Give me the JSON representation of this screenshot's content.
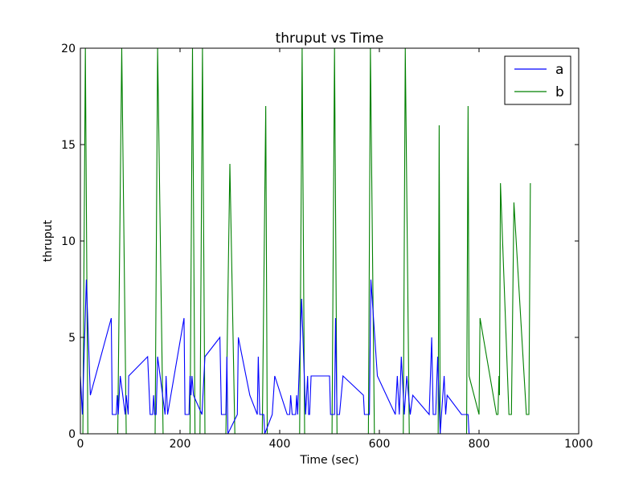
{
  "chart_data": {
    "type": "line",
    "title": "thruput vs Time",
    "xlabel": "Time (sec)",
    "ylabel": "thruput",
    "xlim": [
      0,
      1000
    ],
    "ylim": [
      0,
      20
    ],
    "xticks": [
      0,
      200,
      400,
      600,
      800,
      1000
    ],
    "yticks": [
      0,
      5,
      10,
      15,
      20
    ],
    "grid": false,
    "legend_position": "top-right",
    "series": [
      {
        "name": "a",
        "color": "#0000ff",
        "points": [
          [
            0,
            3
          ],
          [
            4,
            1
          ],
          [
            12,
            8
          ],
          [
            20,
            2
          ],
          [
            62,
            6
          ],
          [
            64,
            1
          ],
          [
            72,
            1
          ],
          [
            74,
            2
          ],
          [
            76,
            1
          ],
          [
            80,
            3
          ],
          [
            90,
            1
          ],
          [
            92,
            2
          ],
          [
            96,
            1
          ],
          [
            97,
            3
          ],
          [
            135,
            4
          ],
          [
            140,
            1
          ],
          [
            145,
            1
          ],
          [
            147,
            2
          ],
          [
            149,
            1
          ],
          [
            152,
            1
          ],
          [
            155,
            4
          ],
          [
            170,
            1
          ],
          [
            172,
            3
          ],
          [
            175,
            1
          ],
          [
            208,
            6
          ],
          [
            210,
            1
          ],
          [
            218,
            1
          ],
          [
            220,
            3
          ],
          [
            222,
            2
          ],
          [
            224,
            3
          ],
          [
            227,
            2
          ],
          [
            244,
            1
          ],
          [
            250,
            4
          ],
          [
            280,
            5
          ],
          [
            283,
            1
          ],
          [
            292,
            1
          ],
          [
            294,
            4
          ],
          [
            296,
            0
          ],
          [
            315,
            1
          ],
          [
            317,
            5
          ],
          [
            340,
            2
          ],
          [
            355,
            1
          ],
          [
            357,
            4
          ],
          [
            360,
            1
          ],
          [
            368,
            1
          ],
          [
            370,
            0
          ],
          [
            385,
            1
          ],
          [
            390,
            3
          ],
          [
            415,
            1
          ],
          [
            420,
            1
          ],
          [
            422,
            2
          ],
          [
            425,
            1
          ],
          [
            432,
            1
          ],
          [
            434,
            2
          ],
          [
            436,
            1
          ],
          [
            444,
            7
          ],
          [
            452,
            1
          ],
          [
            456,
            3
          ],
          [
            458,
            1
          ],
          [
            460,
            1
          ],
          [
            463,
            3
          ],
          [
            500,
            3
          ],
          [
            502,
            1
          ],
          [
            510,
            1
          ],
          [
            512,
            6
          ],
          [
            515,
            1
          ],
          [
            520,
            1
          ],
          [
            527,
            3
          ],
          [
            568,
            2
          ],
          [
            570,
            1
          ],
          [
            580,
            1
          ],
          [
            583,
            8
          ],
          [
            596,
            3
          ],
          [
            632,
            1
          ],
          [
            636,
            3
          ],
          [
            640,
            1
          ],
          [
            644,
            4
          ],
          [
            650,
            1
          ],
          [
            655,
            3
          ],
          [
            662,
            1
          ],
          [
            667,
            2
          ],
          [
            700,
            1
          ],
          [
            705,
            5
          ],
          [
            708,
            1
          ],
          [
            713,
            1
          ],
          [
            717,
            4
          ],
          [
            722,
            0
          ],
          [
            730,
            3
          ],
          [
            733,
            1
          ],
          [
            736,
            2
          ],
          [
            765,
            1
          ],
          [
            778,
            1
          ],
          [
            780,
            0
          ],
          [
            900,
            0
          ]
        ]
      },
      {
        "name": "b",
        "color": "#008000",
        "points": [
          [
            0,
            0
          ],
          [
            5,
            0
          ],
          [
            10,
            20
          ],
          [
            15,
            0
          ],
          [
            75,
            0
          ],
          [
            83,
            20
          ],
          [
            92,
            0
          ],
          [
            150,
            0
          ],
          [
            155,
            20
          ],
          [
            166,
            0
          ],
          [
            220,
            0
          ],
          [
            225,
            20
          ],
          [
            230,
            0
          ],
          [
            240,
            0
          ],
          [
            245,
            20
          ],
          [
            250,
            0
          ],
          [
            292,
            0
          ],
          [
            300,
            14
          ],
          [
            310,
            0
          ],
          [
            365,
            0
          ],
          [
            372,
            17
          ],
          [
            375,
            0
          ],
          [
            440,
            0
          ],
          [
            445,
            20
          ],
          [
            450,
            0
          ],
          [
            505,
            0
          ],
          [
            510,
            20
          ],
          [
            515,
            0
          ],
          [
            578,
            0
          ],
          [
            582,
            20
          ],
          [
            590,
            0
          ],
          [
            648,
            0
          ],
          [
            652,
            20
          ],
          [
            660,
            0
          ],
          [
            715,
            0
          ],
          [
            718,
            0
          ],
          [
            720,
            16
          ],
          [
            722,
            0
          ],
          [
            775,
            0
          ],
          [
            778,
            17
          ],
          [
            780,
            3
          ],
          [
            800,
            1
          ],
          [
            802,
            6
          ],
          [
            835,
            1
          ],
          [
            838,
            1
          ],
          [
            840,
            3
          ],
          [
            841,
            2
          ],
          [
            843,
            13
          ],
          [
            860,
            1
          ],
          [
            865,
            1
          ],
          [
            870,
            12
          ],
          [
            895,
            1
          ],
          [
            900,
            1
          ],
          [
            903,
            13
          ]
        ]
      }
    ]
  }
}
